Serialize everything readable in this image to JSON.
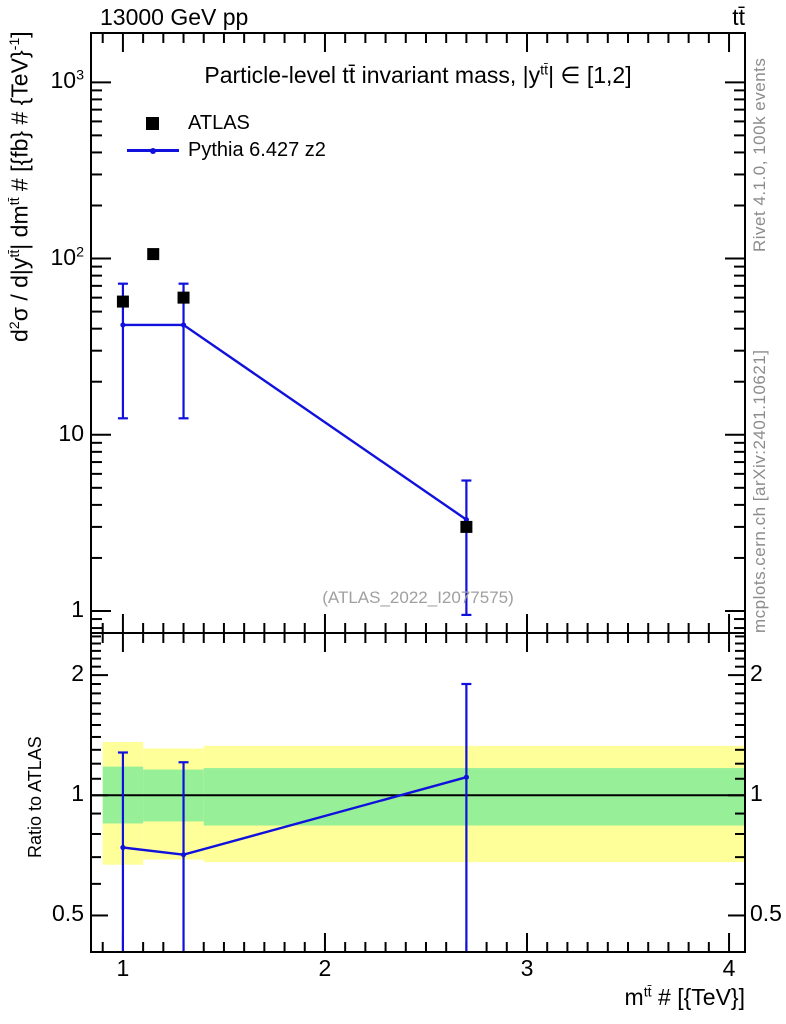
{
  "header": {
    "beam": "13000 GeV pp",
    "process_html": "tt̄"
  },
  "main_plot": {
    "title_html": "Particle-level tt̄ invariant mass, |y<sup>tt̄</sup>| ∈ [1,2]",
    "watermark": "(ATLAS_2022_I2077575)"
  },
  "side_texts": {
    "right_top": "Rivet 4.1.0,  100k events",
    "right_bottom": "mcplots.cern.ch [arXiv:2401.10621]"
  },
  "legend": {
    "entries": [
      {
        "label": "ATLAS",
        "marker": "filled-square",
        "color": "#000000"
      },
      {
        "label": "Pythia 6.427 z2",
        "marker": "line-dot",
        "color": "#1111dd"
      }
    ]
  },
  "axes": {
    "x": {
      "label_html": "m<sup>tt̄</sup> # [{TeV}]",
      "ticks": [
        {
          "v": 1,
          "label": "1"
        },
        {
          "v": 2,
          "label": "2"
        },
        {
          "v": 3,
          "label": "3"
        },
        {
          "v": 4,
          "label": "4"
        }
      ],
      "minor_step": 0.1,
      "minor_range": [
        0.9,
        4.0
      ]
    },
    "y_main": {
      "label_html": "d<sup>2</sup>σ / d|y<sup>tt̄</sup>| dm<sup>tt̄</sup> # [{fb} # {TeV}<sup>-1</sup>]",
      "ticks": [
        {
          "v": 1000,
          "label": "10<sup>3</sup>"
        },
        {
          "v": 100,
          "label": "10<sup>2</sup>"
        },
        {
          "v": 10,
          "label": "10"
        },
        {
          "v": 1,
          "label": "1"
        }
      ]
    },
    "y_ratio": {
      "label": "Ratio to ATLAS",
      "ticks": [
        {
          "v": 2,
          "label": "2"
        },
        {
          "v": 1,
          "label": "1"
        },
        {
          "v": 0.5,
          "label": "0.5"
        }
      ],
      "minor_step": 0.1,
      "minor_range": [
        0.5,
        2.5
      ]
    }
  },
  "colors": {
    "mc_blue": "#1111dd",
    "band_yellow": "#ffff9a",
    "band_green": "#97ef97",
    "frame": "#000000",
    "ratio_one_line": "#000000"
  },
  "chart_data": [
    {
      "type": "scatter",
      "panel": "main",
      "title": "Particle-level ttbar invariant mass, |y^ttbar| in [1,2]",
      "xlabel": "m^ttbar [TeV]",
      "ylabel": "d2sigma / d|y^ttbar| dm^ttbar [fb/TeV]",
      "xlim": [
        0.842,
        4.079
      ],
      "ylim_log": [
        0.75,
        1905
      ],
      "legend_position": "top-left",
      "grid": false,
      "series": [
        {
          "name": "ATLAS",
          "marker": "filled-square",
          "color": "#000000",
          "x": [
            1.0,
            1.15,
            1.3,
            2.7
          ],
          "y": [
            57,
            106,
            60,
            3.0
          ]
        },
        {
          "name": "Pythia 6.427 z2",
          "marker": "line-dot",
          "color": "#1111dd",
          "x": [
            1.0,
            1.3,
            2.7
          ],
          "y": [
            42,
            42,
            3.3
          ],
          "y_err_low": [
            12.4,
            12.4,
            0.95
          ],
          "y_err_high": [
            72,
            72,
            5.5
          ]
        }
      ]
    },
    {
      "type": "line",
      "panel": "ratio",
      "ylabel": "Ratio to ATLAS",
      "xlim": [
        0.842,
        4.079
      ],
      "ylim_log": [
        0.405,
        2.55
      ],
      "reference_line": 1.0,
      "bands": [
        {
          "x0": 0.9,
          "x1": 1.1,
          "yellow": [
            0.67,
            1.36
          ],
          "green": [
            0.85,
            1.18
          ]
        },
        {
          "x0": 1.1,
          "x1": 1.4,
          "yellow": [
            0.69,
            1.31
          ],
          "green": [
            0.86,
            1.16
          ]
        },
        {
          "x0": 1.4,
          "x1": 4.079,
          "yellow": [
            0.68,
            1.33
          ],
          "green": [
            0.84,
            1.17
          ]
        }
      ],
      "series": [
        {
          "name": "Pythia 6.427 z2 / ATLAS",
          "color": "#1111dd",
          "x": [
            1.0,
            1.3,
            2.7
          ],
          "y": [
            0.74,
            0.71,
            1.11
          ],
          "y_err_low": [
            0.4,
            0.4,
            0.4
          ],
          "y_err_high": [
            1.28,
            1.21,
            1.9
          ]
        }
      ]
    }
  ]
}
